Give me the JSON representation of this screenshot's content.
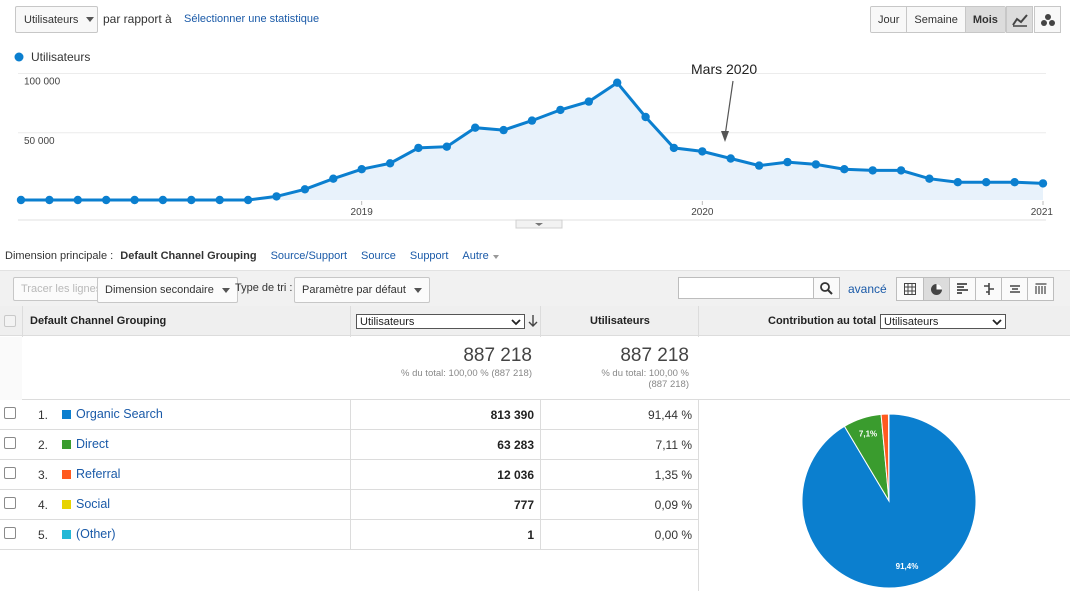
{
  "topbar": {
    "metric_select": "Utilisateurs",
    "compare_label": "par rapport à",
    "select_stat_link": "Sélectionner une statistique",
    "period_buttons": [
      "Jour",
      "Semaine",
      "Mois"
    ],
    "active_period": "Mois"
  },
  "chart_data": {
    "type": "line",
    "legend": "Utilisateurs",
    "series_color": "#0b7fcf",
    "y_ticks": [
      "100 000",
      "50 000"
    ],
    "x_ticks": [
      "2019",
      "2020",
      "2021"
    ],
    "annotation": "Mars 2020",
    "ylim": [
      0,
      110000
    ],
    "x": [
      "2018-01",
      "2018-02",
      "2018-03",
      "2018-04",
      "2018-05",
      "2018-06",
      "2018-07",
      "2018-08",
      "2018-09",
      "2018-10",
      "2018-11",
      "2018-12",
      "2019-01",
      "2019-02",
      "2019-03",
      "2019-04",
      "2019-05",
      "2019-06",
      "2019-07",
      "2019-08",
      "2019-09",
      "2019-10",
      "2019-11",
      "2019-12",
      "2020-01",
      "2020-02",
      "2020-03",
      "2020-04",
      "2020-05",
      "2020-06",
      "2020-07",
      "2020-08",
      "2020-09",
      "2020-10",
      "2020-11",
      "2020-12",
      "2021-01"
    ],
    "values": [
      0,
      0,
      0,
      0,
      0,
      0,
      0,
      0,
      0,
      3000,
      9000,
      18000,
      26000,
      31000,
      44000,
      45000,
      61000,
      59000,
      67000,
      76000,
      83000,
      99000,
      70000,
      44000,
      41000,
      35000,
      29000,
      32000,
      30000,
      26000,
      25000,
      25000,
      18000,
      15000,
      15000,
      15000,
      14000
    ]
  },
  "dimension": {
    "label": "Dimension principale :",
    "active": "Default Channel Grouping",
    "options": [
      "Source/Support",
      "Source",
      "Support",
      "Autre"
    ]
  },
  "toolbar": {
    "plot_rows": "Tracer les lignes",
    "secondary_dim": "Dimension secondaire",
    "sort_label": "Type de tri :",
    "sort_value": "Paramètre par défaut",
    "advanced": "avancé"
  },
  "table": {
    "col_dim": "Default Channel Grouping",
    "col_metric_select": "Utilisateurs",
    "col_metric": "Utilisateurs",
    "col_contrib": "Contribution au total :",
    "col_contrib_select": "Utilisateurs",
    "total_1": "887 218",
    "total_1_sub": "% du total: 100,00 % (887 218)",
    "total_2": "887 218",
    "total_2_sub_a": "% du total: 100,00 %",
    "total_2_sub_b": "(887 218)",
    "rows": [
      {
        "idx": "1.",
        "name": "Organic Search",
        "color": "#0b7fcf",
        "users": "813 390",
        "pct": "91,44 %"
      },
      {
        "idx": "2.",
        "name": "Direct",
        "color": "#3a9c2e",
        "users": "63 283",
        "pct": "7,11 %"
      },
      {
        "idx": "3.",
        "name": "Referral",
        "color": "#ff5a1f",
        "users": "12 036",
        "pct": "1,35 %"
      },
      {
        "idx": "4.",
        "name": "Social",
        "color": "#e7d300",
        "users": "777",
        "pct": "0,09 %"
      },
      {
        "idx": "5.",
        "name": "(Other)",
        "color": "#23b8d6",
        "users": "1",
        "pct": "0,00 %"
      }
    ]
  },
  "pie": {
    "slices": [
      {
        "name": "Organic Search",
        "value": 91.44,
        "color": "#0b7fcf",
        "label": "91,4%"
      },
      {
        "name": "Direct",
        "value": 7.11,
        "color": "#3a9c2e",
        "label": "7,1%"
      },
      {
        "name": "Referral",
        "value": 1.35,
        "color": "#ff5a1f",
        "label": ""
      },
      {
        "name": "Social",
        "value": 0.09,
        "color": "#e7d300",
        "label": ""
      },
      {
        "name": "(Other)",
        "value": 0.01,
        "color": "#23b8d6",
        "label": ""
      }
    ]
  }
}
